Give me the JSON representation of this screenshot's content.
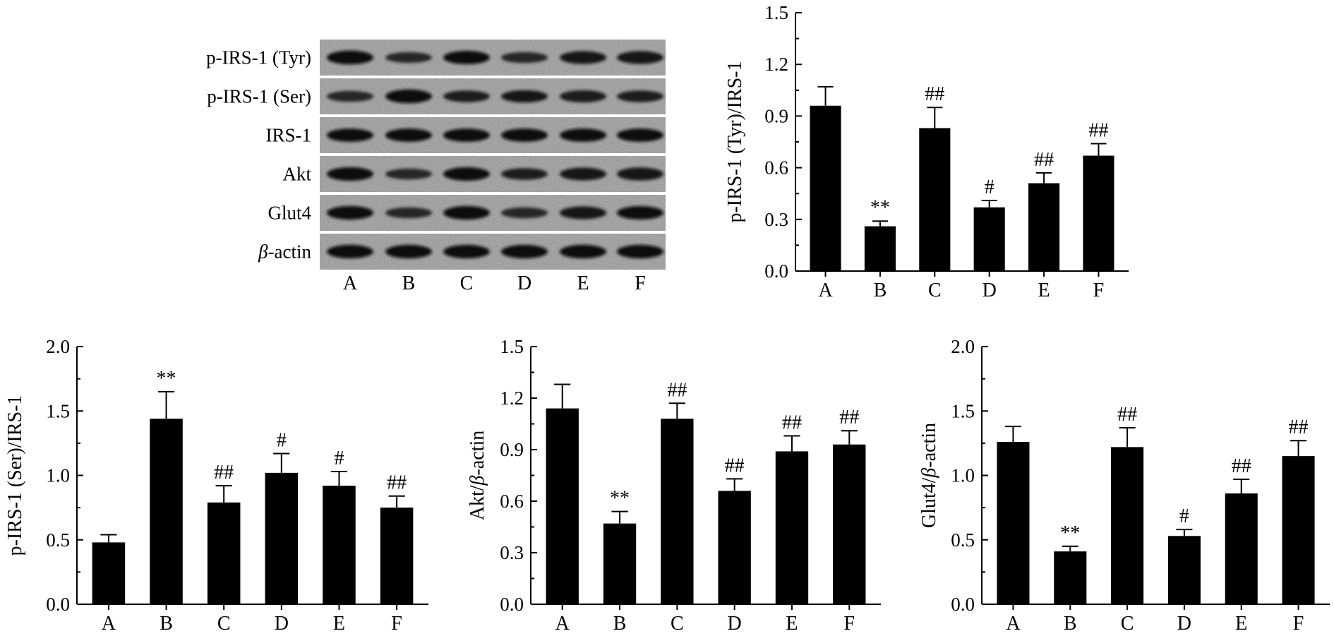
{
  "blot": {
    "rows": [
      {
        "label": "p-IRS-1 (Tyr)",
        "intensity": [
          0.96,
          0.52,
          0.9,
          0.55,
          0.82,
          0.82
        ]
      },
      {
        "label": "p-IRS-1 (Ser)",
        "intensity": [
          0.55,
          0.95,
          0.65,
          0.75,
          0.72,
          0.65
        ]
      },
      {
        "label": "IRS-1",
        "intensity": [
          0.88,
          0.88,
          0.88,
          0.88,
          0.88,
          0.88
        ]
      },
      {
        "label": "Akt",
        "intensity": [
          0.92,
          0.55,
          0.92,
          0.65,
          0.82,
          0.85
        ]
      },
      {
        "label": "Glut4",
        "intensity": [
          0.92,
          0.55,
          0.92,
          0.55,
          0.82,
          0.9
        ]
      },
      {
        "label_italic": "β",
        "label_rest": "-actin",
        "intensity": [
          0.92,
          0.92,
          0.92,
          0.92,
          0.92,
          0.92
        ]
      }
    ],
    "lanes": [
      "A",
      "B",
      "C",
      "D",
      "E",
      "F"
    ]
  },
  "chart_data": [
    {
      "type": "bar",
      "categories": [
        "A",
        "B",
        "C",
        "D",
        "E",
        "F"
      ],
      "values": [
        0.96,
        0.26,
        0.83,
        0.37,
        0.51,
        0.67
      ],
      "errors": [
        0.11,
        0.03,
        0.12,
        0.04,
        0.06,
        0.07
      ],
      "annotations": [
        "",
        "**",
        "##",
        "#",
        "##",
        "##"
      ],
      "ylabel": "p-IRS-1 (Tyr)/IRS-1",
      "ylim": [
        0,
        1.5
      ],
      "yticks": [
        "0.0",
        "0.3",
        "0.6",
        "0.9",
        "1.2",
        "1.5"
      ],
      "grid": false
    },
    {
      "type": "bar",
      "categories": [
        "A",
        "B",
        "C",
        "D",
        "E",
        "F"
      ],
      "values": [
        0.48,
        1.44,
        0.79,
        1.02,
        0.92,
        0.75
      ],
      "errors": [
        0.06,
        0.21,
        0.13,
        0.15,
        0.11,
        0.09
      ],
      "annotations": [
        "",
        "**",
        "##",
        "#",
        "#",
        "##"
      ],
      "ylabel": "p-IRS-1 (Ser)/IRS-1",
      "ylim": [
        0,
        2.0
      ],
      "yticks": [
        "0.0",
        "0.5",
        "1.0",
        "1.5",
        "2.0"
      ],
      "grid": false
    },
    {
      "type": "bar",
      "categories": [
        "A",
        "B",
        "C",
        "D",
        "E",
        "F"
      ],
      "values": [
        1.14,
        0.47,
        1.08,
        0.66,
        0.89,
        0.93
      ],
      "errors": [
        0.14,
        0.07,
        0.09,
        0.07,
        0.09,
        0.08
      ],
      "annotations": [
        "",
        "**",
        "##",
        "##",
        "##",
        "##"
      ],
      "ylabel_prefix": "Akt/",
      "ylabel_italic": "β",
      "ylabel_suffix": "-actin",
      "ylim": [
        0,
        1.5
      ],
      "yticks": [
        "0.0",
        "0.3",
        "0.6",
        "0.9",
        "1.2",
        "1.5"
      ],
      "grid": false
    },
    {
      "type": "bar",
      "categories": [
        "A",
        "B",
        "C",
        "D",
        "E",
        "F"
      ],
      "values": [
        1.26,
        0.41,
        1.22,
        0.53,
        0.86,
        1.15
      ],
      "errors": [
        0.12,
        0.04,
        0.15,
        0.05,
        0.11,
        0.12
      ],
      "annotations": [
        "",
        "**",
        "##",
        "#",
        "##",
        "##"
      ],
      "ylabel_prefix": "Glut4/",
      "ylabel_italic": "β",
      "ylabel_suffix": "-actin",
      "ylim": [
        0,
        2.0
      ],
      "yticks": [
        "0.0",
        "0.5",
        "1.0",
        "1.5",
        "2.0"
      ],
      "grid": false
    }
  ]
}
